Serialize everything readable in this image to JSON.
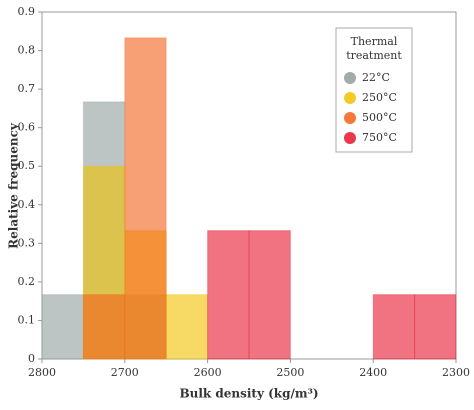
{
  "chart_data": {
    "type": "histogram",
    "xlabel": "Bulk density (kg/m³)",
    "ylabel": "Relative frequency",
    "legend_title": [
      "Thermal",
      "treatment"
    ],
    "legend": "upper right",
    "bins": [
      2800,
      2750,
      2700,
      2650,
      2600,
      2550,
      2500,
      2450,
      2400,
      2350,
      2300
    ],
    "series": [
      {
        "name": "22°C",
        "color": "#8f9e9c",
        "values": [
          0.167,
          0.667,
          0.167,
          0,
          0,
          0,
          0,
          0,
          0,
          0
        ]
      },
      {
        "name": "250°C",
        "color": "#f2c200",
        "values": [
          0,
          0.5,
          0.333,
          0.167,
          0,
          0,
          0,
          0,
          0,
          0
        ]
      },
      {
        "name": "500°C",
        "color": "#f2601a",
        "values": [
          0,
          0.167,
          0.833,
          0,
          0,
          0,
          0,
          0,
          0,
          0
        ]
      },
      {
        "name": "750°C",
        "color": "#e8142c",
        "values": [
          0,
          0,
          0,
          0,
          0.333,
          0.333,
          0,
          0,
          0.167,
          0.167
        ]
      }
    ],
    "xlim": [
      2800,
      2300
    ],
    "xticks": [
      2800,
      2700,
      2600,
      2500,
      2400,
      2300
    ],
    "ylim": [
      0,
      0.9
    ],
    "yticks": [
      0,
      0.1,
      0.2,
      0.3,
      0.4,
      0.5,
      0.6,
      0.7,
      0.8,
      0.9
    ]
  }
}
